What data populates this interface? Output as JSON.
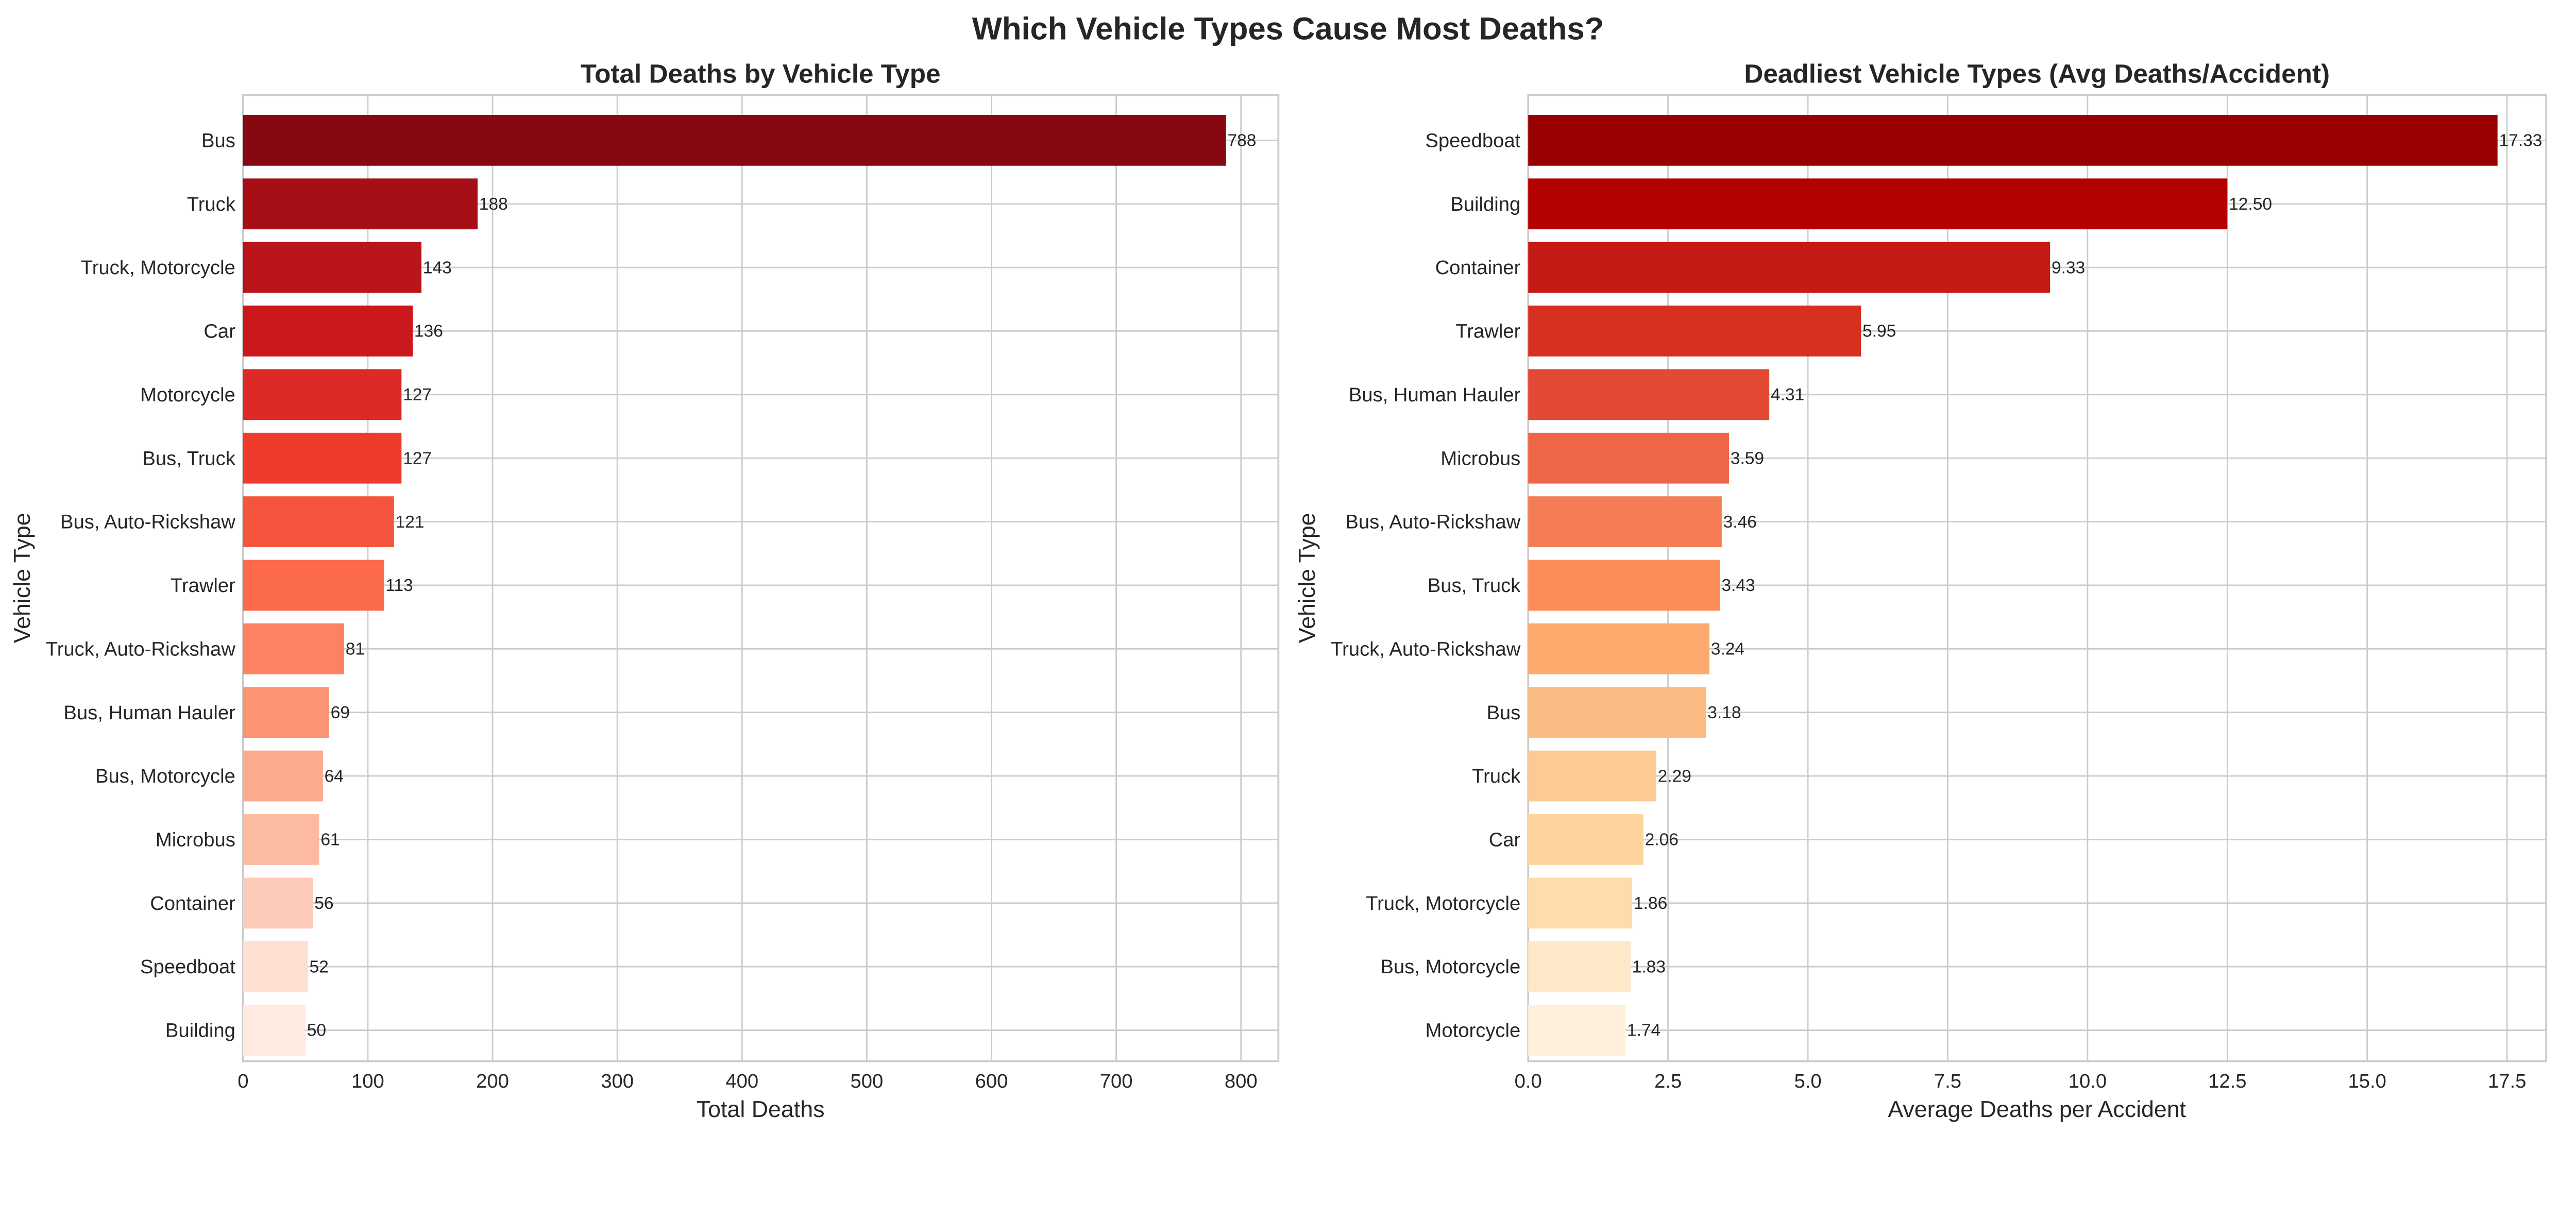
{
  "figure_title": "Which Vehicle Types Cause Most Deaths?",
  "chart_data": [
    {
      "type": "bar",
      "orientation": "horizontal",
      "title": "Total Deaths by Vehicle Type",
      "xlabel": "Total Deaths",
      "ylabel": "Vehicle Type",
      "xlim": [
        0,
        830
      ],
      "xticks": [
        0,
        100,
        200,
        300,
        400,
        500,
        600,
        700,
        800
      ],
      "xtick_labels": [
        "0",
        "100",
        "200",
        "300",
        "400",
        "500",
        "600",
        "700",
        "800"
      ],
      "grid": true,
      "colormap": "Reds",
      "categories": [
        "Bus",
        "Truck",
        "Truck, Motorcycle",
        "Car",
        "Motorcycle",
        "Bus, Truck",
        "Bus, Auto-Rickshaw",
        "Trawler",
        "Truck, Auto-Rickshaw",
        "Bus, Human Hauler",
        "Bus, Motorcycle",
        "Microbus",
        "Container",
        "Speedboat",
        "Building"
      ],
      "values": [
        788,
        188,
        143,
        136,
        127,
        127,
        121,
        113,
        81,
        69,
        64,
        61,
        56,
        52,
        50
      ],
      "value_labels": [
        "788",
        "188",
        "143",
        "136",
        "127",
        "127",
        "121",
        "113",
        "81",
        "69",
        "64",
        "61",
        "56",
        "52",
        "50"
      ],
      "colors": [
        "#860811",
        "#a50f15",
        "#b9151b",
        "#cb181d",
        "#de2a26",
        "#ef3b2c",
        "#f5553c",
        "#fb6a4a",
        "#fc8262",
        "#fc9474",
        "#fcaa8e",
        "#fcbba1",
        "#fdccb8",
        "#fee0d2",
        "#feeae1"
      ]
    },
    {
      "type": "bar",
      "orientation": "horizontal",
      "title": "Deadliest Vehicle Types (Avg Deaths/Accident)",
      "xlabel": "Average Deaths per Accident",
      "ylabel": "Vehicle Type",
      "xlim": [
        0,
        18.2
      ],
      "xticks": [
        0,
        2.5,
        5,
        7.5,
        10,
        12.5,
        15,
        17.5
      ],
      "xtick_labels": [
        "0.0",
        "2.5",
        "5.0",
        "7.5",
        "10.0",
        "12.5",
        "15.0",
        "17.5"
      ],
      "grid": true,
      "colormap": "OrRd",
      "categories": [
        "Speedboat",
        "Building",
        "Container",
        "Trawler",
        "Bus, Human Hauler",
        "Microbus",
        "Bus, Auto-Rickshaw",
        "Bus, Truck",
        "Truck, Auto-Rickshaw",
        "Bus",
        "Truck",
        "Car",
        "Truck, Motorcycle",
        "Bus, Motorcycle",
        "Motorcycle"
      ],
      "values": [
        17.33,
        12.5,
        9.33,
        5.95,
        4.31,
        3.59,
        3.46,
        3.43,
        3.24,
        3.18,
        2.29,
        2.06,
        1.86,
        1.83,
        1.74
      ],
      "value_labels": [
        "17.33",
        "12.50",
        "9.33",
        "5.95",
        "4.31",
        "3.59",
        "3.46",
        "3.43",
        "3.24",
        "3.18",
        "2.29",
        "2.06",
        "1.86",
        "1.83",
        "1.74"
      ],
      "colors": [
        "#990000",
        "#b30000",
        "#c61a15",
        "#d7301f",
        "#e34a33",
        "#ef6548",
        "#f47d55",
        "#fc8d59",
        "#fdaa6f",
        "#fdbb84",
        "#fdca92",
        "#fdd49e",
        "#fedcae",
        "#fee8c8",
        "#fff0dc"
      ]
    }
  ]
}
